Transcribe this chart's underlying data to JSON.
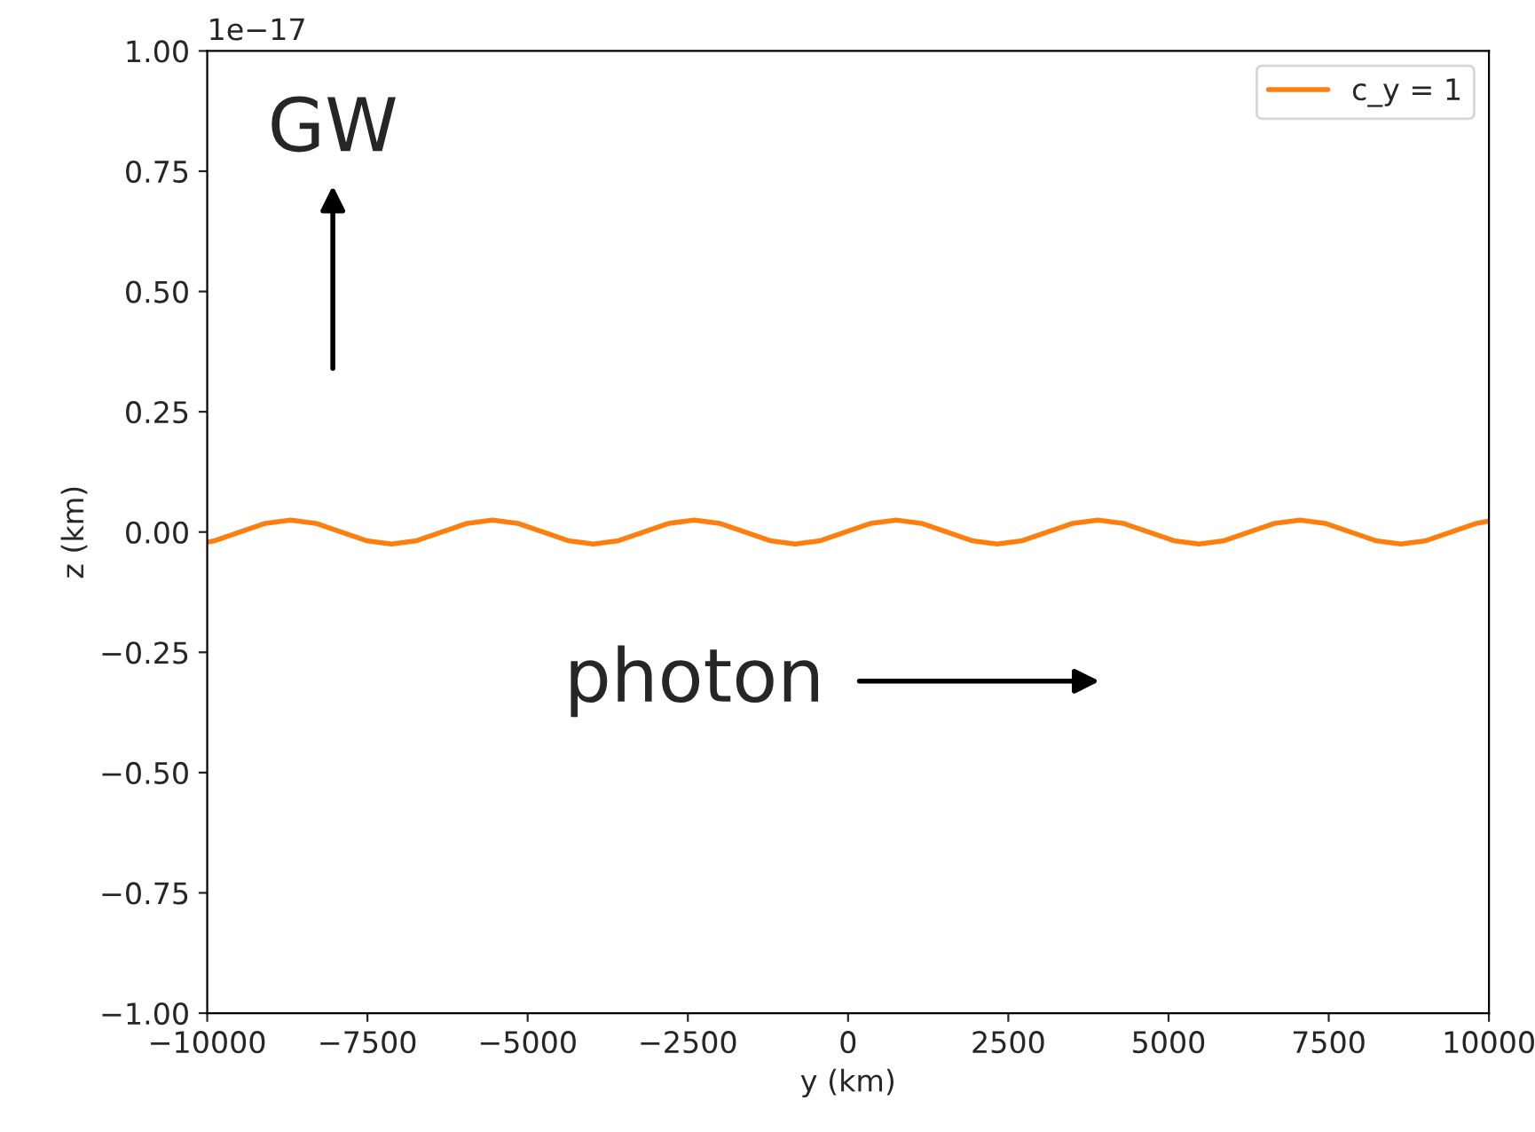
{
  "chart_data": {
    "type": "line",
    "xlabel": "y (km)",
    "ylabel": "z (km)",
    "x": [
      -10000,
      -9881,
      -9488,
      -9094,
      -8700,
      -8306,
      -7912,
      -7519,
      -7125,
      -6731,
      -6338,
      -5944,
      -5550,
      -5156,
      -4762,
      -4369,
      -3975,
      -3581,
      -3188,
      -2794,
      -2400,
      -2006,
      -1612,
      -1219,
      -825,
      -431,
      -38,
      356,
      750,
      1144,
      1538,
      1931,
      2325,
      2719,
      3113,
      3506,
      3900,
      4294,
      4687,
      5081,
      5475,
      5869,
      6263,
      6656,
      7050,
      7444,
      7838,
      8231,
      8625,
      9019,
      9413,
      9806,
      10000
    ],
    "series": [
      {
        "name": "c_y = 1",
        "color": "#ff7f0e",
        "values": [
          -0.021,
          -0.018,
          0,
          0.018,
          0.025,
          0.018,
          0,
          -0.018,
          -0.025,
          -0.018,
          0,
          0.018,
          0.025,
          0.018,
          0,
          -0.018,
          -0.025,
          -0.018,
          0,
          0.018,
          0.025,
          0.018,
          0,
          -0.018,
          -0.025,
          -0.018,
          0,
          0.018,
          0.025,
          0.018,
          0,
          -0.018,
          -0.025,
          -0.018,
          0,
          0.018,
          0.025,
          0.018,
          0,
          -0.018,
          -0.025,
          -0.018,
          0,
          0.018,
          0.025,
          0.018,
          0,
          -0.018,
          -0.025,
          -0.018,
          0,
          0.018,
          0.023
        ]
      }
    ],
    "xlim": [
      -10000,
      10000
    ],
    "xticks": [
      {
        "value": -10000,
        "label": "−10000"
      },
      {
        "value": -7500,
        "label": "−7500"
      },
      {
        "value": -5000,
        "label": "−5000"
      },
      {
        "value": -2500,
        "label": "−2500"
      },
      0,
      2500,
      5000,
      7500,
      10000
    ],
    "ylim": [
      -1.0,
      1.0
    ],
    "yticks": [
      {
        "value": -1.0,
        "label": "−1.00"
      },
      {
        "value": -0.75,
        "label": "−0.75"
      },
      {
        "value": -0.5,
        "label": "−0.50"
      },
      {
        "value": -0.25,
        "label": "−0.25"
      },
      {
        "value": 0,
        "label": "0.00"
      },
      {
        "value": 0.25,
        "label": "0.25"
      },
      {
        "value": 0.5,
        "label": "0.50"
      },
      {
        "value": 0.75,
        "label": "0.75"
      },
      {
        "value": 1.0,
        "label": "1.00"
      }
    ],
    "annotations": [
      "1e−17",
      "GW",
      "photon"
    ],
    "legend": "top right",
    "grid": false,
    "marker": "none",
    "line_style": "solid"
  }
}
